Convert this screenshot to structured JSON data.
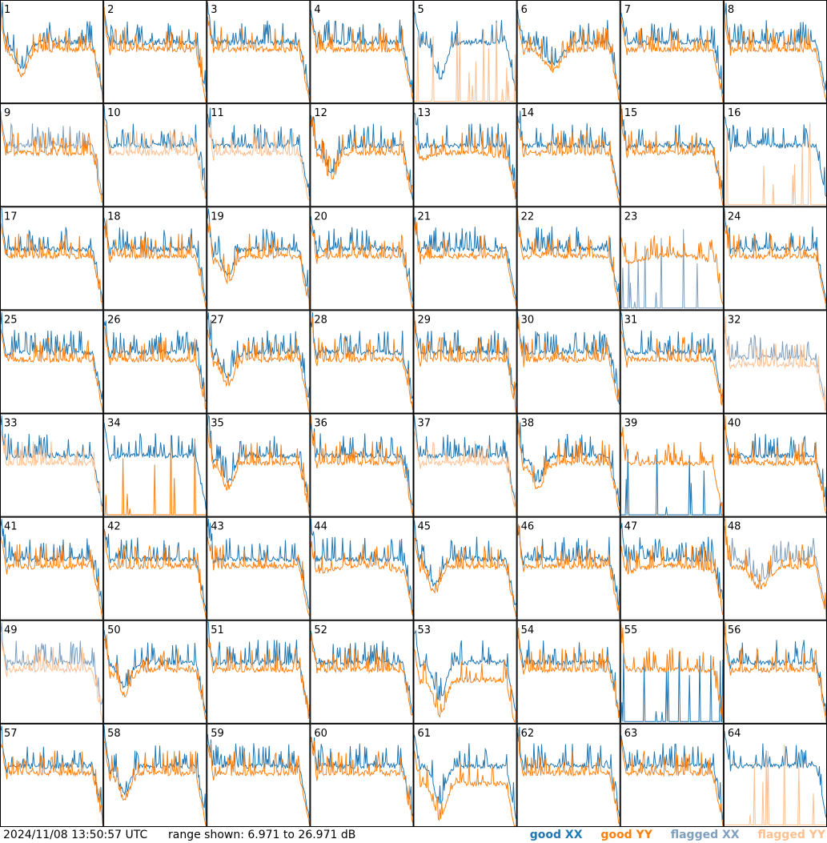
{
  "chart_data": {
    "type": "line",
    "layout": "small-multiples grid of 64 panels (8 columns x 8 rows)",
    "x_axis": "frequency channel (no tick labels shown)",
    "y_range_db": [
      6.971,
      26.971
    ],
    "series_legend": [
      {
        "name": "good XX",
        "color": "#1f77b4"
      },
      {
        "name": "good YY",
        "color": "#ff7f0e"
      },
      {
        "name": "flagged XX",
        "color": "#7f9fbf"
      },
      {
        "name": "flagged YY",
        "color": "#ffbf8f"
      }
    ],
    "panels": [
      {
        "id": "1",
        "status": "good",
        "shape": "dip-left"
      },
      {
        "id": "2",
        "status": "good",
        "shape": "flat"
      },
      {
        "id": "3",
        "status": "good",
        "shape": "flat"
      },
      {
        "id": "4",
        "status": "good",
        "shape": "flat"
      },
      {
        "id": "5",
        "status": "yy-flagged",
        "shape": "deep-dip"
      },
      {
        "id": "6",
        "status": "good",
        "shape": "dip-mid"
      },
      {
        "id": "7",
        "status": "good",
        "shape": "flat"
      },
      {
        "id": "8",
        "status": "good",
        "shape": "flat"
      },
      {
        "id": "9",
        "status": "xx-flagged",
        "shape": "flat"
      },
      {
        "id": "10",
        "status": "yy-flagged-overlay",
        "shape": "flat"
      },
      {
        "id": "11",
        "status": "yy-flagged-overlay",
        "shape": "flat"
      },
      {
        "id": "12",
        "status": "good",
        "shape": "dip-left"
      },
      {
        "id": "13",
        "status": "good",
        "shape": "yy-smooth"
      },
      {
        "id": "14",
        "status": "good",
        "shape": "flat"
      },
      {
        "id": "15",
        "status": "good",
        "shape": "flat"
      },
      {
        "id": "16",
        "status": "yy-flagged",
        "shape": "flat"
      },
      {
        "id": "17",
        "status": "good",
        "shape": "flat"
      },
      {
        "id": "18",
        "status": "good",
        "shape": "flat"
      },
      {
        "id": "19",
        "status": "good",
        "shape": "dip-left"
      },
      {
        "id": "20",
        "status": "good",
        "shape": "flat"
      },
      {
        "id": "21",
        "status": "good",
        "shape": "flat"
      },
      {
        "id": "22",
        "status": "good",
        "shape": "flat"
      },
      {
        "id": "23",
        "status": "xx-flagged",
        "shape": "yy-smooth"
      },
      {
        "id": "24",
        "status": "good",
        "shape": "flat"
      },
      {
        "id": "25",
        "status": "good",
        "shape": "flat"
      },
      {
        "id": "26",
        "status": "good",
        "shape": "flat"
      },
      {
        "id": "27",
        "status": "good",
        "shape": "dip-left"
      },
      {
        "id": "28",
        "status": "good",
        "shape": "flat"
      },
      {
        "id": "29",
        "status": "good",
        "shape": "flat"
      },
      {
        "id": "30",
        "status": "good",
        "shape": "flat"
      },
      {
        "id": "31",
        "status": "good",
        "shape": "flat"
      },
      {
        "id": "32",
        "status": "both-flagged",
        "shape": "noisy"
      },
      {
        "id": "33",
        "status": "yy-flagged-overlay",
        "shape": "flat"
      },
      {
        "id": "34",
        "status": "yy-spikes",
        "shape": "flat"
      },
      {
        "id": "35",
        "status": "good",
        "shape": "dip-left"
      },
      {
        "id": "36",
        "status": "good",
        "shape": "flat"
      },
      {
        "id": "37",
        "status": "yy-flagged-overlay",
        "shape": "flat"
      },
      {
        "id": "38",
        "status": "good",
        "shape": "dip-left"
      },
      {
        "id": "39",
        "status": "xx-low",
        "shape": "flat"
      },
      {
        "id": "40",
        "status": "good",
        "shape": "flat"
      },
      {
        "id": "41",
        "status": "good",
        "shape": "flat"
      },
      {
        "id": "42",
        "status": "good",
        "shape": "flat"
      },
      {
        "id": "43",
        "status": "good",
        "shape": "flat"
      },
      {
        "id": "44",
        "status": "good",
        "shape": "yy-smooth"
      },
      {
        "id": "45",
        "status": "good",
        "shape": "dip-left"
      },
      {
        "id": "46",
        "status": "good",
        "shape": "flat"
      },
      {
        "id": "47",
        "status": "good",
        "shape": "yy-smooth"
      },
      {
        "id": "48",
        "status": "xx-flagged-overlay",
        "shape": "dip-mid"
      },
      {
        "id": "49",
        "status": "both-flagged",
        "shape": "flat"
      },
      {
        "id": "50",
        "status": "good",
        "shape": "dip-left"
      },
      {
        "id": "51",
        "status": "good",
        "shape": "flat"
      },
      {
        "id": "52",
        "status": "good",
        "shape": "flat"
      },
      {
        "id": "53",
        "status": "good",
        "shape": "deep-dip"
      },
      {
        "id": "54",
        "status": "good",
        "shape": "flat"
      },
      {
        "id": "55",
        "status": "xx-low",
        "shape": "flat"
      },
      {
        "id": "56",
        "status": "good",
        "shape": "flat"
      },
      {
        "id": "57",
        "status": "good",
        "shape": "flat"
      },
      {
        "id": "58",
        "status": "good",
        "shape": "dip-left"
      },
      {
        "id": "59",
        "status": "good",
        "shape": "flat"
      },
      {
        "id": "60",
        "status": "good",
        "shape": "flat"
      },
      {
        "id": "61",
        "status": "good",
        "shape": "deep-dip"
      },
      {
        "id": "62",
        "status": "good",
        "shape": "flat"
      },
      {
        "id": "63",
        "status": "good",
        "shape": "flat"
      },
      {
        "id": "64",
        "status": "yy-flagged",
        "shape": "flat"
      }
    ]
  },
  "footer": {
    "timestamp": "2024/11/08 13:50:57 UTC",
    "range_text": "range shown: 6.971 to 26.971 dB",
    "legend": {
      "good_xx": "good XX",
      "good_yy": "good YY",
      "flagged_xx": "flagged XX",
      "flagged_yy": "flagged YY"
    }
  },
  "colors": {
    "good_xx": "#1f77b4",
    "good_yy": "#ff7f0e",
    "flagged_xx": "#7f9fbf",
    "flagged_yy": "#ffbf8f"
  }
}
